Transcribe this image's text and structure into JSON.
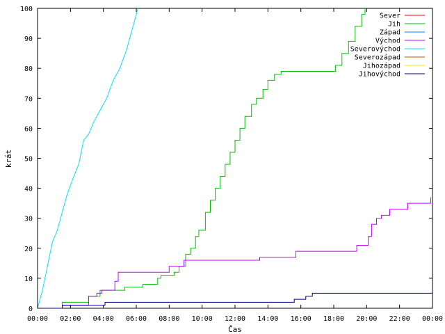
{
  "chart_data": {
    "type": "line",
    "xlabel": "Čas",
    "ylabel": "krát",
    "xlim": [
      0,
      24
    ],
    "ylim": [
      0,
      100
    ],
    "x_ticks": [
      {
        "v": 0,
        "label": "00:00"
      },
      {
        "v": 2,
        "label": "02:00"
      },
      {
        "v": 4,
        "label": "04:00"
      },
      {
        "v": 6,
        "label": "06:00"
      },
      {
        "v": 8,
        "label": "08:00"
      },
      {
        "v": 10,
        "label": "10:00"
      },
      {
        "v": 12,
        "label": "12:00"
      },
      {
        "v": 14,
        "label": "14:00"
      },
      {
        "v": 16,
        "label": "16:00"
      },
      {
        "v": 18,
        "label": "18:00"
      },
      {
        "v": 20,
        "label": "20:00"
      },
      {
        "v": 22,
        "label": "22:00"
      },
      {
        "v": 24,
        "label": "00:00"
      }
    ],
    "y_ticks": [
      0,
      10,
      20,
      30,
      40,
      50,
      60,
      70,
      80,
      90,
      100
    ],
    "grid": false,
    "legend_position": "top-right",
    "series": [
      {
        "name": "Sever",
        "color": "#ff0000",
        "step": true,
        "points": []
      },
      {
        "name": "Jih",
        "color": "#00c000",
        "step": true,
        "points": [
          [
            0.0,
            0
          ],
          [
            1.5,
            2
          ],
          [
            3.1,
            4
          ],
          [
            3.8,
            6
          ],
          [
            5.3,
            7
          ],
          [
            6.4,
            8
          ],
          [
            7.3,
            10
          ],
          [
            7.5,
            11
          ],
          [
            8.3,
            12
          ],
          [
            8.6,
            14
          ],
          [
            9.0,
            18
          ],
          [
            9.3,
            20
          ],
          [
            9.6,
            24
          ],
          [
            9.8,
            26
          ],
          [
            10.2,
            32
          ],
          [
            10.5,
            36
          ],
          [
            10.8,
            40
          ],
          [
            11.1,
            44
          ],
          [
            11.4,
            48
          ],
          [
            11.7,
            52
          ],
          [
            12.0,
            56
          ],
          [
            12.3,
            60
          ],
          [
            12.6,
            64
          ],
          [
            13.0,
            68
          ],
          [
            13.3,
            70
          ],
          [
            13.7,
            73
          ],
          [
            14.0,
            76
          ],
          [
            14.4,
            78
          ],
          [
            14.8,
            79
          ],
          [
            18.1,
            81
          ],
          [
            18.5,
            85
          ],
          [
            18.9,
            89
          ],
          [
            19.3,
            94
          ],
          [
            19.7,
            98
          ],
          [
            19.9,
            100
          ]
        ]
      },
      {
        "name": "Západ",
        "color": "#0080ff",
        "step": true,
        "points": []
      },
      {
        "name": "Východ",
        "color": "#c000ff",
        "step": true,
        "points": [
          [
            0.0,
            0
          ],
          [
            1.5,
            1
          ],
          [
            3.1,
            4
          ],
          [
            3.6,
            5
          ],
          [
            3.9,
            6
          ],
          [
            4.7,
            9
          ],
          [
            4.9,
            12
          ],
          [
            8.0,
            14
          ],
          [
            8.9,
            16
          ],
          [
            13.5,
            17
          ],
          [
            15.7,
            19
          ],
          [
            19.4,
            21
          ],
          [
            20.1,
            24
          ],
          [
            20.3,
            28
          ],
          [
            20.6,
            30
          ],
          [
            20.9,
            31
          ],
          [
            21.4,
            33
          ],
          [
            22.5,
            35
          ],
          [
            23.9,
            37
          ]
        ]
      },
      {
        "name": "Severovýchod",
        "color": "#00e0ff",
        "step": false,
        "points": [
          [
            0.0,
            0
          ],
          [
            0.3,
            6
          ],
          [
            0.6,
            14
          ],
          [
            0.9,
            22
          ],
          [
            1.2,
            26
          ],
          [
            1.5,
            32
          ],
          [
            1.8,
            38
          ],
          [
            2.2,
            44
          ],
          [
            2.5,
            48
          ],
          [
            2.8,
            56
          ],
          [
            3.1,
            58
          ],
          [
            3.4,
            62
          ],
          [
            3.8,
            66
          ],
          [
            4.2,
            70
          ],
          [
            4.6,
            76
          ],
          [
            5.0,
            80
          ],
          [
            5.4,
            86
          ],
          [
            5.8,
            94
          ],
          [
            6.1,
            100
          ]
        ]
      },
      {
        "name": "Severozápad",
        "color": "#c05000",
        "step": true,
        "points": []
      },
      {
        "name": "Jihozápad",
        "color": "#ffe000",
        "step": true,
        "points": []
      },
      {
        "name": "Jihovýchod",
        "color": "#000080",
        "step": true,
        "points": [
          [
            0.0,
            0
          ],
          [
            1.5,
            1
          ],
          [
            4.1,
            2
          ],
          [
            15.6,
            3
          ],
          [
            16.3,
            4
          ],
          [
            16.7,
            5
          ],
          [
            24.0,
            5
          ]
        ]
      }
    ]
  }
}
